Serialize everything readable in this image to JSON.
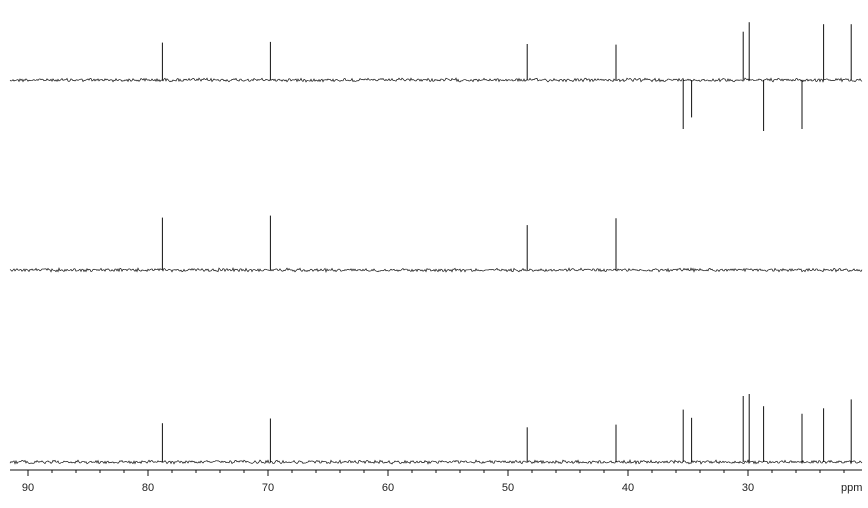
{
  "chart_data": {
    "type": "line",
    "title": "",
    "xlabel": "",
    "ylabel": "",
    "x_unit_label": "ppm",
    "xlim": [
      91.5,
      20.5
    ],
    "x_reversed": true,
    "grid": false,
    "x_ticks": [
      90,
      80,
      70,
      60,
      50,
      40,
      30
    ],
    "spectra": [
      {
        "peaks": [
          {
            "ppm": 78.8,
            "intensity": 0.55
          },
          {
            "ppm": 69.8,
            "intensity": 0.56
          },
          {
            "ppm": 48.4,
            "intensity": 0.53
          },
          {
            "ppm": 41.0,
            "intensity": 0.52
          },
          {
            "ppm": 35.4,
            "intensity": -0.72
          },
          {
            "ppm": 34.7,
            "intensity": -0.55
          },
          {
            "ppm": 30.4,
            "intensity": 0.71
          },
          {
            "ppm": 29.9,
            "intensity": 0.85
          },
          {
            "ppm": 28.7,
            "intensity": -0.75
          },
          {
            "ppm": 25.5,
            "intensity": -0.72
          },
          {
            "ppm": 23.7,
            "intensity": 0.82
          },
          {
            "ppm": 21.4,
            "intensity": 0.82
          }
        ]
      },
      {
        "peaks": [
          {
            "ppm": 78.8,
            "intensity": 0.77
          },
          {
            "ppm": 69.8,
            "intensity": 0.8
          },
          {
            "ppm": 48.4,
            "intensity": 0.66
          },
          {
            "ppm": 41.0,
            "intensity": 0.76
          }
        ]
      },
      {
        "peaks": [
          {
            "ppm": 78.8,
            "intensity": 0.57
          },
          {
            "ppm": 69.8,
            "intensity": 0.64
          },
          {
            "ppm": 48.4,
            "intensity": 0.51
          },
          {
            "ppm": 41.0,
            "intensity": 0.55
          },
          {
            "ppm": 35.4,
            "intensity": 0.77
          },
          {
            "ppm": 34.7,
            "intensity": 0.65
          },
          {
            "ppm": 30.4,
            "intensity": 0.97
          },
          {
            "ppm": 29.9,
            "intensity": 1.0
          },
          {
            "ppm": 28.7,
            "intensity": 0.82
          },
          {
            "ppm": 25.5,
            "intensity": 0.71
          },
          {
            "ppm": 23.7,
            "intensity": 0.79
          },
          {
            "ppm": 21.4,
            "intensity": 0.92
          }
        ]
      }
    ]
  }
}
